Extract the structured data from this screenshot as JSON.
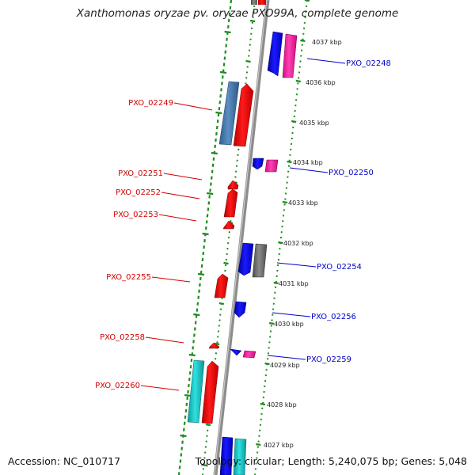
{
  "title": "Xanthomonas oryzae pv. oryzae PXO99A, complete genome",
  "footer": {
    "accession": "Accession: NC_010717",
    "summary": "Topology: circular; Length: 5,240,075 bp; Genes: 5,048"
  },
  "colors": {
    "backbone": "#8c8c8c",
    "tick_dots": "#1e8c1e",
    "forward_gene": "#ff0000",
    "reverse_gene": "#0000ff",
    "forward_label": "#d40000",
    "reverse_label": "#0000cc",
    "cds_pink": "#ff2ea8",
    "cds_steelblue": "#4a7fb5",
    "cds_cyan": "#1fc8c8",
    "cds_gray": "#707070"
  },
  "scale_labels": [
    "4037 kbp",
    "4036 kbp",
    "4035 kbp",
    "4034 kbp",
    "4033 kbp",
    "4032 kbp",
    "4031 kbp",
    "4030 kbp",
    "4029 kbp",
    "4028 kbp",
    "4027 kbp"
  ],
  "left_genes": [
    "PXO_02249",
    "PXO_02251",
    "PXO_02252",
    "PXO_02253",
    "PXO_02255",
    "PXO_02258",
    "PXO_02260"
  ],
  "right_genes": [
    "PXO_02248",
    "PXO_02250",
    "PXO_02254",
    "PXO_02256",
    "PXO_02259"
  ]
}
